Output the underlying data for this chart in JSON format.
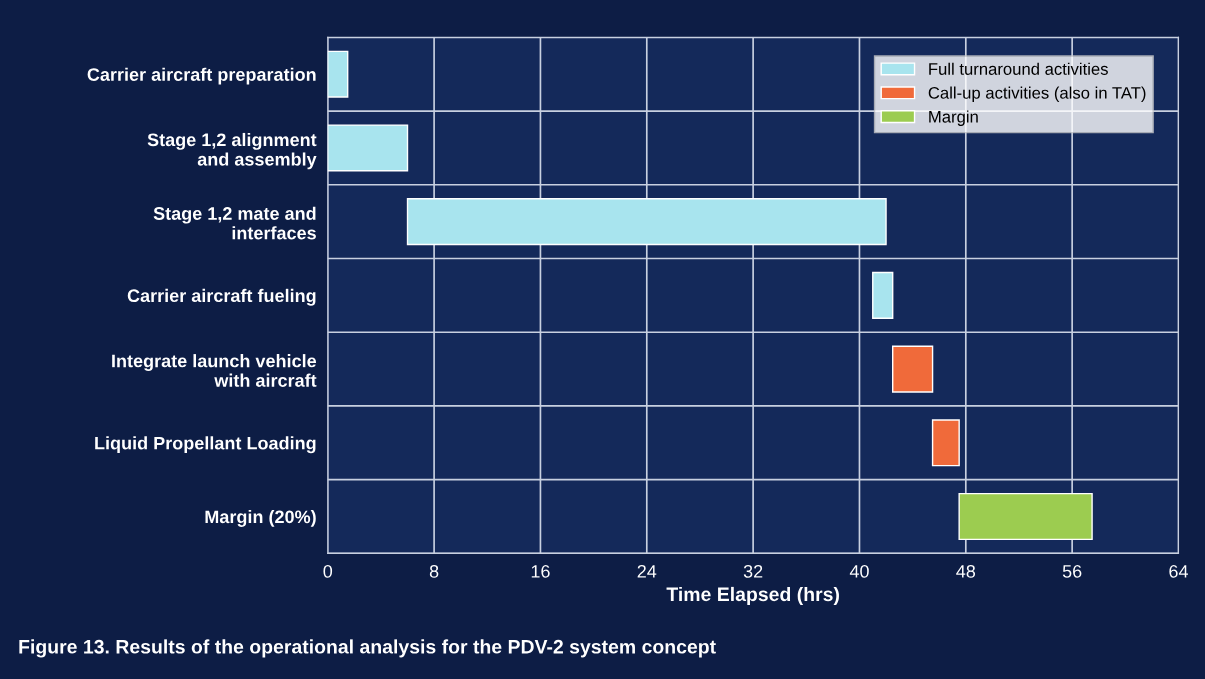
{
  "chart_data": {
    "type": "bar",
    "orientation": "horizontal",
    "xlabel": "Time Elapsed (hrs)",
    "categories": [
      "Carrier aircraft preparation",
      "Stage 1,2 alignment\nand assembly",
      "Stage 1,2 mate and\ninterfaces",
      "Carrier aircraft fueling",
      "Integrate launch vehicle\nwith aircraft",
      "Liquid Propellant Loading",
      "Margin (20%)"
    ],
    "series": [
      {
        "name": "Full turnaround activities",
        "color": "#a8e4ee",
        "values": [
          1.5,
          6,
          36,
          1.5,
          null,
          null,
          null
        ],
        "base": [
          0,
          0,
          6,
          41,
          null,
          null,
          null
        ]
      },
      {
        "name": "Call-up activities (also in TAT)",
        "color": "#f06a3a",
        "values": [
          null,
          null,
          null,
          null,
          3,
          2,
          null
        ],
        "base": [
          null,
          null,
          null,
          null,
          42.5,
          45.5,
          null
        ]
      },
      {
        "name": "Margin",
        "color": "#9ccc50",
        "values": [
          null,
          null,
          null,
          null,
          null,
          null,
          10
        ],
        "base": [
          null,
          null,
          null,
          null,
          null,
          null,
          47.5
        ]
      }
    ],
    "xlim": [
      0,
      64
    ],
    "xticks": [
      0,
      8,
      16,
      24,
      32,
      40,
      48,
      56,
      64
    ],
    "grid": true,
    "legend": "top right",
    "annotations": [
      "Figure 13. Results of the operational analysis for the PDV-2 system concept"
    ]
  }
}
